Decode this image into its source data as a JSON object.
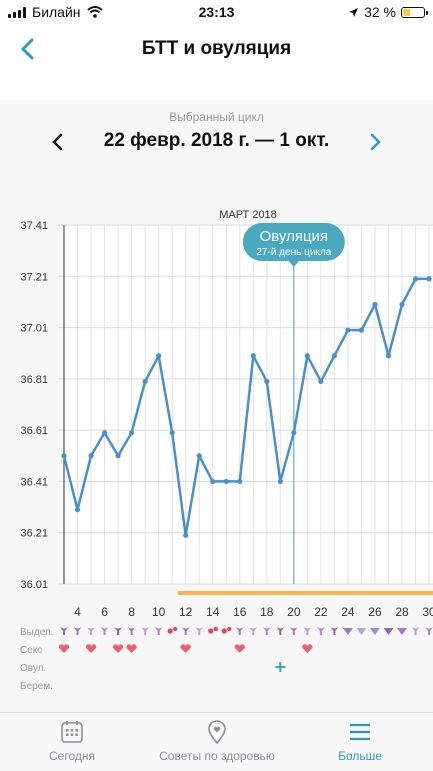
{
  "status_bar": {
    "carrier": "Билайн",
    "time": "23:13",
    "battery": "32 %",
    "battery_level": 0.32
  },
  "header": {
    "title": "БТТ и овуляция",
    "back_icon": "chevron-left-icon"
  },
  "cycle": {
    "label": "Выбранный цикл",
    "range": "22 февр. 2018 г. — 1 окт."
  },
  "chart_data": {
    "type": "line",
    "title": "МАРТ 2018",
    "ylim": [
      36.01,
      37.41
    ],
    "yticks": [
      "37.41",
      "37.21",
      "37.01",
      "36.81",
      "36.61",
      "36.41",
      "36.21",
      "36.01"
    ],
    "x_start_day": 3,
    "xticks": [
      "4",
      "6",
      "8",
      "10",
      "12",
      "14",
      "16",
      "18",
      "20",
      "22",
      "24",
      "26",
      "28",
      "30"
    ],
    "grid": true,
    "x": [
      3,
      4,
      5,
      6,
      7,
      8,
      9,
      10,
      11,
      12,
      13,
      14,
      15,
      16,
      17,
      18,
      19,
      20,
      21,
      22,
      23,
      24,
      25,
      26,
      27,
      28,
      29,
      30
    ],
    "values": [
      36.51,
      36.3,
      36.51,
      36.6,
      36.51,
      36.6,
      36.8,
      36.9,
      36.6,
      36.2,
      36.51,
      36.41,
      36.41,
      36.41,
      36.9,
      36.8,
      36.41,
      36.6,
      36.9,
      36.8,
      36.9,
      37.0,
      37.0,
      37.1,
      36.9,
      37.1,
      37.2,
      37.2
    ],
    "line_color": "#4a90c8",
    "ovulation": {
      "day": 20,
      "label": "Овуляция",
      "sublabel": "27-й день цикла",
      "color": "#4aa8bf"
    },
    "period_bar_color": "#f5b44f",
    "rows": [
      {
        "label": "Выдел.",
        "markers": "discharge-icon"
      },
      {
        "label": "Секс",
        "markers": "heart-icon",
        "days": [
          3,
          5,
          7,
          8,
          12,
          16,
          21
        ]
      },
      {
        "label": "Овул.",
        "markers": "plus-icon",
        "days": [
          19
        ]
      },
      {
        "label": "Берем.",
        "markers": ""
      }
    ]
  },
  "tabbar": {
    "tabs": [
      {
        "label": "Сегодня",
        "icon": "calendar-icon"
      },
      {
        "label": "Советы по здоровью",
        "icon": "location-pin-icon"
      },
      {
        "label": "Больше",
        "icon": "menu-icon"
      }
    ],
    "active_color": "#2e9bb6",
    "inactive_color": "#8e8e93"
  }
}
